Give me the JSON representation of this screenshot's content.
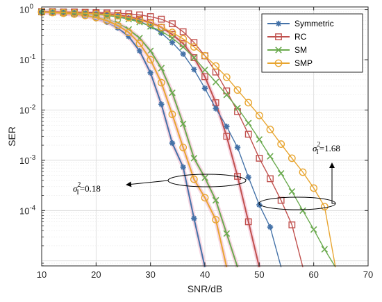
{
  "chart_data": {
    "type": "line",
    "title": "",
    "xlabel": "SNR/dB",
    "ylabel": "SER",
    "xlim": [
      10,
      70
    ],
    "ylim_log10": [
      -5.1,
      0.05
    ],
    "y_scale": "log",
    "grid": true,
    "legend_position": "top-right",
    "x_ticks": [
      10,
      20,
      30,
      40,
      50,
      60,
      70
    ],
    "x_tick_labels": [
      "10",
      "20",
      "30",
      "40",
      "50",
      "60",
      "70"
    ],
    "y_ticks_log10": [
      0,
      -1,
      -2,
      -3,
      -4
    ],
    "y_tick_labels": [
      {
        "base": "10",
        "exp": "0"
      },
      {
        "base": "10",
        "exp": "-1"
      },
      {
        "base": "10",
        "exp": "-2"
      },
      {
        "base": "10",
        "exp": "-3"
      },
      {
        "base": "10",
        "exp": "-4"
      }
    ],
    "series": [
      {
        "name": "Symmetric",
        "color": "#4472a8",
        "marker": "asterisk",
        "group": "low",
        "x": [
          10,
          12,
          14,
          16,
          18,
          20,
          22,
          24,
          26,
          28,
          30,
          32,
          34,
          36,
          38,
          40
        ],
        "y": [
          0.88,
          0.86,
          0.83,
          0.79,
          0.74,
          0.66,
          0.56,
          0.43,
          0.29,
          0.15,
          0.055,
          0.013,
          0.0022,
          0.00073,
          7e-05,
          7.5e-06
        ]
      },
      {
        "name": "RC",
        "color": "#c0504d",
        "marker": "square",
        "group": "low",
        "x": [
          10,
          12,
          14,
          16,
          18,
          20,
          22,
          24,
          26,
          28,
          30,
          32,
          34,
          36,
          38,
          40,
          42,
          44,
          46,
          48,
          50
        ],
        "y": [
          0.9,
          0.89,
          0.88,
          0.87,
          0.86,
          0.84,
          0.81,
          0.77,
          0.72,
          0.64,
          0.55,
          0.44,
          0.32,
          0.21,
          0.11,
          0.046,
          0.014,
          0.003,
          0.00048,
          6e-05,
          7.5e-06
        ]
      },
      {
        "name": "SM",
        "color": "#6aaa4e",
        "marker": "x",
        "group": "low",
        "x": [
          10,
          12,
          14,
          16,
          18,
          20,
          22,
          24,
          26,
          28,
          30,
          32,
          34,
          36,
          38,
          40,
          42,
          44,
          46
        ],
        "y": [
          0.89,
          0.87,
          0.85,
          0.82,
          0.78,
          0.72,
          0.64,
          0.53,
          0.4,
          0.27,
          0.15,
          0.068,
          0.022,
          0.0053,
          0.0011,
          0.00045,
          0.00016,
          3.5e-05,
          7.5e-06
        ]
      },
      {
        "name": "SMP",
        "color": "#e8a530",
        "marker": "circle",
        "group": "low",
        "x": [
          10,
          12,
          14,
          16,
          18,
          20,
          22,
          24,
          26,
          28,
          30,
          32,
          34,
          36,
          38,
          40,
          42,
          44
        ],
        "y": [
          0.89,
          0.87,
          0.84,
          0.81,
          0.76,
          0.69,
          0.6,
          0.48,
          0.35,
          0.21,
          0.1,
          0.035,
          0.0082,
          0.0018,
          0.00042,
          0.00018,
          6.6e-05,
          7.5e-06
        ]
      },
      {
        "name": "Symmetric",
        "color": "#4472a8",
        "marker": "asterisk",
        "group": "high",
        "x": [
          10,
          12,
          14,
          16,
          18,
          20,
          22,
          24,
          26,
          28,
          30,
          32,
          34,
          36,
          38,
          40,
          42,
          44,
          46,
          48,
          50,
          52,
          54
        ],
        "y": [
          0.9,
          0.89,
          0.88,
          0.87,
          0.85,
          0.82,
          0.79,
          0.74,
          0.67,
          0.58,
          0.46,
          0.34,
          0.22,
          0.13,
          0.064,
          0.027,
          0.0107,
          0.0047,
          0.0018,
          0.00046,
          0.00013,
          4.7e-05,
          7.5e-06
        ]
      },
      {
        "name": "RC",
        "color": "#c0504d",
        "marker": "square",
        "group": "high",
        "x": [
          10,
          12,
          14,
          16,
          18,
          20,
          22,
          24,
          26,
          28,
          30,
          32,
          34,
          36,
          38,
          40,
          42,
          44,
          46,
          48,
          50,
          52,
          54,
          56,
          58
        ],
        "y": [
          0.9,
          0.9,
          0.89,
          0.89,
          0.88,
          0.87,
          0.86,
          0.84,
          0.82,
          0.78,
          0.72,
          0.64,
          0.52,
          0.36,
          0.22,
          0.12,
          0.057,
          0.024,
          0.0093,
          0.0033,
          0.0011,
          0.00043,
          0.00016,
          5.2e-05,
          7.5e-06
        ]
      },
      {
        "name": "SM",
        "color": "#6aaa4e",
        "marker": "x",
        "group": "high",
        "x": [
          10,
          12,
          14,
          16,
          18,
          20,
          22,
          24,
          26,
          28,
          30,
          32,
          34,
          36,
          38,
          40,
          42,
          44,
          46,
          48,
          50,
          52,
          54,
          56,
          58,
          60,
          62,
          64
        ],
        "y": [
          0.89,
          0.88,
          0.87,
          0.85,
          0.83,
          0.8,
          0.76,
          0.71,
          0.64,
          0.56,
          0.46,
          0.37,
          0.27,
          0.18,
          0.11,
          0.063,
          0.036,
          0.02,
          0.011,
          0.0055,
          0.0026,
          0.0012,
          0.00055,
          0.00024,
          0.0001,
          4.2e-05,
          1.7e-05,
          7.5e-06
        ]
      },
      {
        "name": "SMP",
        "color": "#e8a530",
        "marker": "circle",
        "group": "high",
        "x": [
          10,
          12,
          14,
          16,
          18,
          20,
          22,
          24,
          26,
          28,
          30,
          32,
          34,
          36,
          38,
          40,
          42,
          44,
          46,
          48,
          50,
          52,
          54,
          56,
          58,
          60,
          62,
          64
        ],
        "y": [
          0.89,
          0.88,
          0.87,
          0.86,
          0.84,
          0.82,
          0.79,
          0.75,
          0.69,
          0.62,
          0.53,
          0.44,
          0.35,
          0.26,
          0.18,
          0.12,
          0.075,
          0.045,
          0.025,
          0.014,
          0.0078,
          0.0041,
          0.0021,
          0.0011,
          0.00058,
          0.00028,
          0.00012,
          7.5e-06
        ]
      }
    ],
    "legend": [
      {
        "name": "Symmetric",
        "color": "#4472a8",
        "marker": "asterisk"
      },
      {
        "name": "RC",
        "color": "#c0504d",
        "marker": "square"
      },
      {
        "name": "SM",
        "color": "#6aaa4e",
        "marker": "x"
      },
      {
        "name": "SMP",
        "color": "#e8a530",
        "marker": "circle"
      }
    ],
    "annotations": [
      {
        "symbol": "σ",
        "sup": "2",
        "sub": "I",
        "value": "=0.18",
        "group": "low"
      },
      {
        "symbol": "σ",
        "sup": "2",
        "sub": "I",
        "value": "=1.68",
        "group": "high"
      }
    ]
  }
}
